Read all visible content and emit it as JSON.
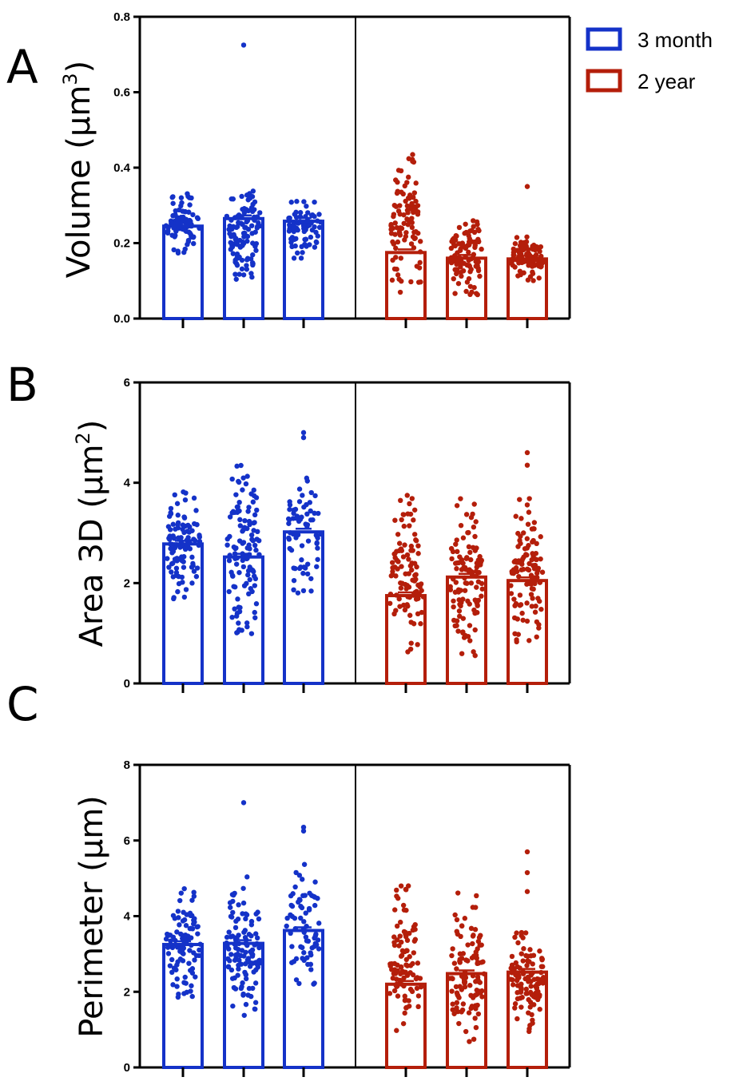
{
  "legend": {
    "entries": [
      {
        "label": "3 month",
        "color": "#1432c8"
      },
      {
        "label": "2 year",
        "color": "#b41e0a"
      }
    ]
  },
  "chart_data": [
    {
      "type": "bar",
      "panel_letter": "A",
      "ylabel": "Volume (μm",
      "ylabel_sup": "3",
      "ylabel_end": ")",
      "ylim": [
        0,
        0.8
      ],
      "yticks": [
        "0.0",
        "0.2",
        "0.4",
        "0.6",
        "0.8"
      ],
      "series": [
        {
          "name": "3 month",
          "values": [
            0.245,
            0.265,
            0.258
          ],
          "range": [
            [
              0.17,
              0.335
            ],
            [
              0.1,
              0.34
            ],
            [
              0.16,
              0.335
            ]
          ],
          "outliers": [
            [],
            [
              0.725
            ],
            []
          ],
          "counts": [
            90,
            110,
            70
          ]
        },
        {
          "name": "2 year",
          "values": [
            0.175,
            0.16,
            0.158
          ],
          "range": [
            [
              0.06,
              0.44
            ],
            [
              0.06,
              0.27
            ],
            [
              0.1,
              0.22
            ]
          ],
          "outliers": [
            [],
            [],
            [
              0.35
            ]
          ],
          "counts": [
            100,
            100,
            100
          ]
        }
      ]
    },
    {
      "type": "bar",
      "panel_letter": "B",
      "ylabel": "Area 3D (μm",
      "ylabel_sup": "2",
      "ylabel_end": ")",
      "ylim": [
        0,
        6
      ],
      "yticks": [
        "0",
        "2",
        "4",
        "6"
      ],
      "series": [
        {
          "name": "3 month",
          "values": [
            2.78,
            2.52,
            3.02
          ],
          "range": [
            [
              1.6,
              3.95
            ],
            [
              0.9,
              4.4
            ],
            [
              1.8,
              4.2
            ]
          ],
          "outliers": [
            [],
            [],
            [
              4.9,
              5.0
            ]
          ],
          "counts": [
            100,
            120,
            70
          ]
        },
        {
          "name": "2 year",
          "values": [
            1.75,
            2.12,
            2.05
          ],
          "range": [
            [
              0.6,
              3.75
            ],
            [
              0.55,
              3.7
            ],
            [
              0.8,
              3.7
            ]
          ],
          "outliers": [
            [],
            [],
            [
              4.35,
              4.6
            ]
          ],
          "counts": [
            100,
            110,
            110
          ]
        }
      ]
    },
    {
      "type": "bar",
      "panel_letter": "C",
      "ylabel": "Perimeter (μm)",
      "ylim": [
        0,
        8
      ],
      "yticks": [
        "0",
        "2",
        "4",
        "6",
        "8"
      ],
      "series": [
        {
          "name": "3 month",
          "values": [
            3.25,
            3.28,
            3.62
          ],
          "range": [
            [
              1.75,
              4.75
            ],
            [
              1.15,
              5.05
            ],
            [
              2.1,
              5.6
            ]
          ],
          "outliers": [
            [],
            [
              7.0
            ],
            [
              6.25,
              6.35
            ]
          ],
          "counts": [
            100,
            120,
            70
          ]
        },
        {
          "name": "2 year",
          "values": [
            2.2,
            2.48,
            2.52
          ],
          "range": [
            [
              0.8,
              4.95
            ],
            [
              0.6,
              4.7
            ],
            [
              0.9,
              3.6
            ]
          ],
          "outliers": [
            [],
            [],
            [
              4.65,
              5.15,
              5.7
            ]
          ],
          "counts": [
            100,
            110,
            110
          ]
        }
      ]
    }
  ]
}
